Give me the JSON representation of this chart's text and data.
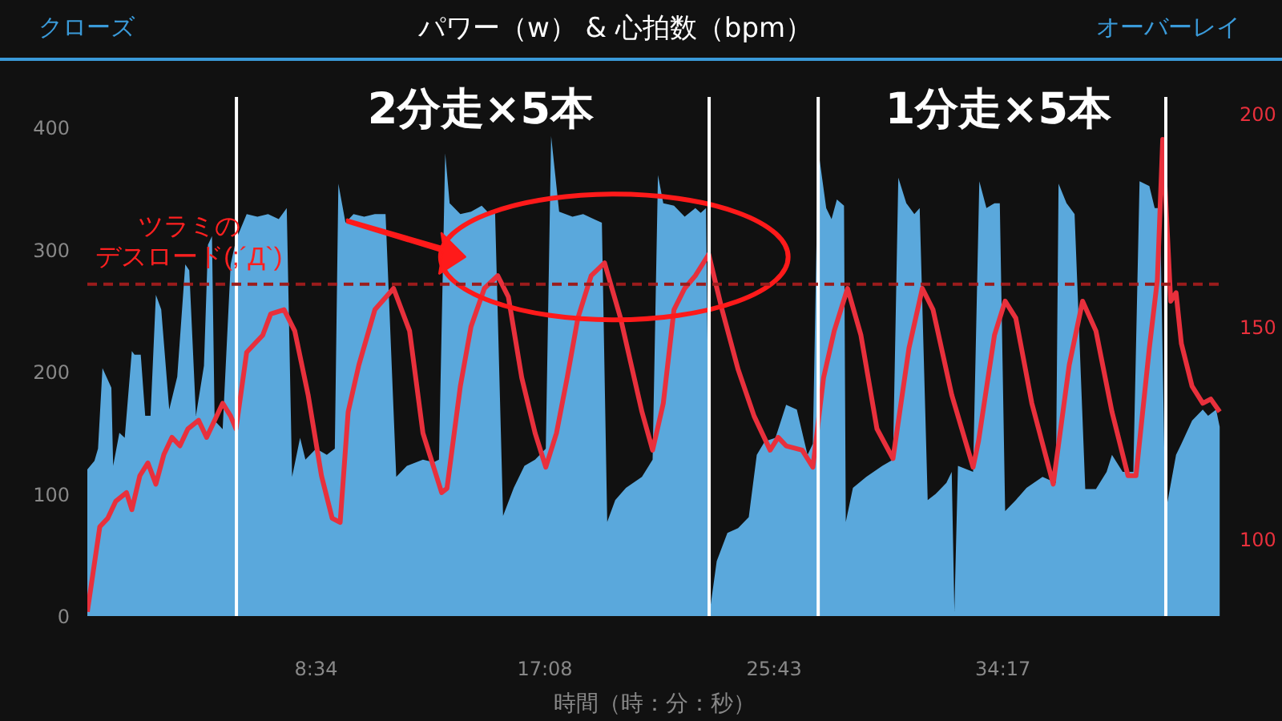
{
  "chart_data": {
    "type": "area",
    "title": "パワー（w） & 心拍数（bpm）",
    "xlabel": "時間（時：分：秒）",
    "annotations": [
      "クローズ",
      "オーバーレイ",
      "2分走×5本",
      "1分走×5本",
      "ツラミの",
      "デスロード(;´Д`)"
    ],
    "xlim": [
      0,
      2549
    ],
    "xticks": [
      {
        "value": 514,
        "label": "8:34"
      },
      {
        "value": 1028,
        "label": "17:08"
      },
      {
        "value": 1543,
        "label": "25:43"
      },
      {
        "value": 2057,
        "label": "34:17"
      }
    ],
    "ylim": [
      0,
      425
    ],
    "yticks": [
      0,
      100,
      200,
      300,
      400
    ],
    "y2lim": [
      82,
      204
    ],
    "y2ticks": [
      100,
      150,
      200
    ],
    "grid": false,
    "ref_lines": [
      {
        "axis": "x",
        "value": 335,
        "color": "#ffffff"
      },
      {
        "axis": "x",
        "value": 1397,
        "color": "#ffffff"
      },
      {
        "axis": "x",
        "value": 1642,
        "color": "#ffffff"
      },
      {
        "axis": "x",
        "value": 2423,
        "color": "#ffffff"
      },
      {
        "axis": "y2",
        "value": 160,
        "color": "#9b1c1c",
        "line_style": "dashed"
      }
    ],
    "series": [
      {
        "color": "#5aa8dc",
        "x": [
          0,
          16,
          24,
          34,
          54,
          58,
          72,
          84,
          100,
          106,
          120,
          130,
          142,
          154,
          166,
          184,
          202,
          220,
          229,
          244,
          262,
          271,
          280,
          286,
          304,
          322,
          334,
          358,
          382,
          406,
          430,
          448,
          460,
          478,
          490,
          514,
          538,
          556,
          564,
          580,
          598,
          622,
          646,
          670,
          694,
          718,
          754,
          778,
          790,
          804,
          814,
          838,
          862,
          886,
          904,
          916,
          934,
          958,
          982,
          1006,
          1030,
          1042,
          1060,
          1090,
          1114,
          1138,
          1156,
          1168,
          1186,
          1210,
          1246,
          1270,
          1282,
          1294,
          1318,
          1342,
          1366,
          1378,
          1390,
          1400,
          1414,
          1438,
          1462,
          1486,
          1504,
          1522,
          1546,
          1570,
          1594,
          1618,
          1630,
          1642,
          1660,
          1672,
          1684,
          1700,
          1704,
          1720,
          1750,
          1786,
          1810,
          1822,
          1840,
          1858,
          1870,
          1888,
          1906,
          1930,
          1942,
          1948,
          1956,
          1990,
          2004,
          2020,
          2038,
          2050,
          2062,
          2086,
          2110,
          2146,
          2176,
          2182,
          2200,
          2218,
          2242,
          2266,
          2290,
          2302,
          2326,
          2350,
          2364,
          2386,
          2398,
          2410,
          2422,
          2446,
          2458,
          2482,
          2506,
          2518,
          2536,
          2544
        ],
        "values": [
          120,
          127,
          137,
          203,
          187,
          123,
          150,
          146,
          217,
          214,
          214,
          164,
          164,
          263,
          251,
          169,
          196,
          288,
          283,
          164,
          205,
          304,
          311,
          160,
          153,
          288,
          308,
          329,
          327,
          329,
          325,
          334,
          114,
          146,
          128,
          137,
          132,
          137,
          354,
          322,
          329,
          327,
          329,
          329,
          114,
          123,
          128,
          126,
          128,
          379,
          338,
          329,
          331,
          336,
          329,
          331,
          82,
          105,
          123,
          128,
          137,
          393,
          331,
          327,
          329,
          325,
          322,
          77,
          95,
          105,
          114,
          128,
          361,
          338,
          336,
          327,
          334,
          330,
          334,
          8,
          45,
          68,
          72,
          81,
          132,
          143,
          146,
          173,
          169,
          132,
          141,
          382,
          334,
          325,
          341,
          336,
          77,
          105,
          114,
          123,
          128,
          359,
          338,
          329,
          334,
          95,
          100,
          109,
          118,
          4,
          123,
          118,
          356,
          334,
          338,
          338,
          86,
          95,
          105,
          114,
          109,
          354,
          338,
          329,
          104,
          104,
          118,
          132,
          118,
          118,
          356,
          352,
          334,
          334,
          84,
          132,
          141,
          160,
          169,
          164,
          169,
          155
        ]
      },
      {
        "type": "line",
        "axis": "y2",
        "color": "#e8303c",
        "x": [
          0,
          28,
          46,
          64,
          88,
          100,
          118,
          136,
          154,
          172,
          190,
          208,
          226,
          250,
          268,
          304,
          322,
          334,
          358,
          376,
          394,
          412,
          442,
          466,
          496,
          526,
          550,
          568,
          586,
          610,
          646,
          688,
          724,
          754,
          778,
          796,
          808,
          838,
          862,
          892,
          922,
          946,
          976,
          1006,
          1030,
          1054,
          1078,
          1102,
          1132,
          1162,
          1198,
          1246,
          1270,
          1294,
          1318,
          1342,
          1366,
          1396,
          1426,
          1462,
          1498,
          1534,
          1552,
          1570,
          1606,
          1630,
          1654,
          1678,
          1708,
          1738,
          1774,
          1810,
          1846,
          1876,
          1900,
          1942,
          1990,
          2002,
          2038,
          2062,
          2086,
          2122,
          2170,
          2206,
          2236,
          2266,
          2302,
          2338,
          2356,
          2386,
          2404,
          2416,
          2434,
          2446,
          2458,
          2482,
          2506,
          2524,
          2544
        ],
        "values": [
          83,
          103,
          105,
          109,
          111,
          107,
          115,
          118,
          113,
          120,
          124,
          122,
          126,
          128,
          124,
          132,
          129,
          126,
          144,
          146,
          148,
          153,
          154,
          149,
          134,
          115,
          105,
          104,
          130,
          141,
          154,
          159,
          149,
          125,
          117,
          111,
          112,
          136,
          150,
          159,
          162,
          157,
          138,
          125,
          117,
          125,
          138,
          152,
          162,
          165,
          152,
          130,
          121,
          132,
          154,
          159,
          162,
          167,
          154,
          140,
          129,
          121,
          124,
          122,
          121,
          117,
          138,
          149,
          159,
          148,
          126,
          119,
          145,
          159,
          154,
          134,
          117,
          123,
          148,
          156,
          152,
          132,
          113,
          141,
          156,
          149,
          130,
          115,
          115,
          145,
          161,
          194,
          156,
          158,
          146,
          136,
          132,
          133,
          130
        ]
      }
    ]
  }
}
